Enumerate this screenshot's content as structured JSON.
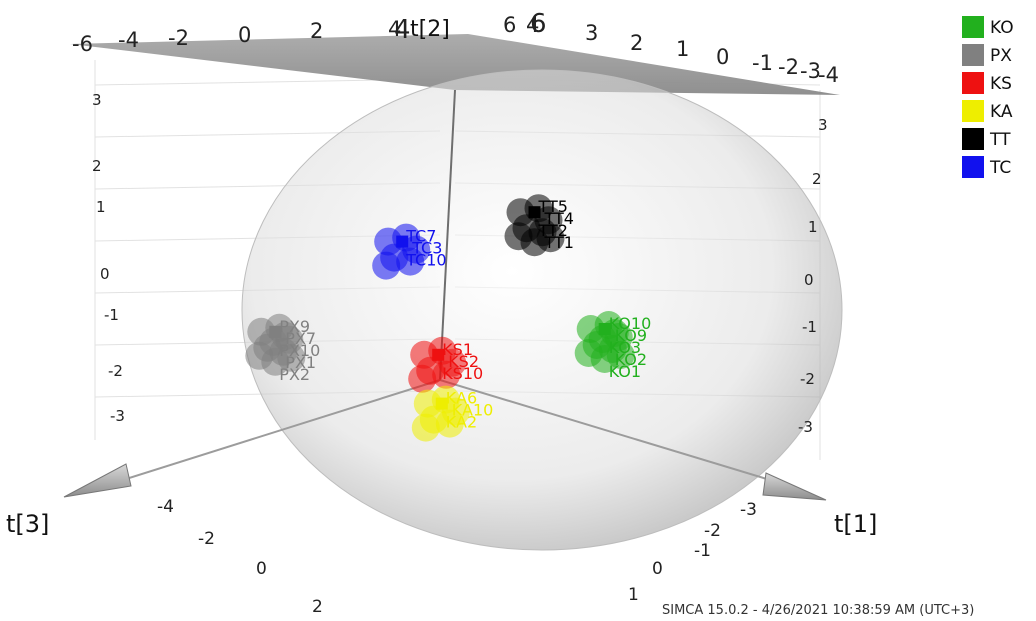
{
  "footer": "SIMCA 15.0.2 - 4/26/2021 10:38:59 AM (UTC+3)",
  "legend": [
    {
      "name": "KO",
      "color": "#22b01e"
    },
    {
      "name": "PX",
      "color": "#808080"
    },
    {
      "name": "KS",
      "color": "#ee1111"
    },
    {
      "name": "KA",
      "color": "#eeee00"
    },
    {
      "name": "TT",
      "color": "#000000"
    },
    {
      "name": "TC",
      "color": "#1111ee"
    }
  ],
  "chart_data": {
    "type": "scatter",
    "projection": "3d",
    "axes": {
      "x": {
        "label": "t[1]",
        "ticks": [
          "4",
          "3",
          "2",
          "1",
          "0",
          "-1",
          "-2",
          "-3",
          "-4"
        ]
      },
      "y": {
        "label": "t[2]",
        "ticks": [
          "3",
          "2",
          "1",
          "0",
          "-1",
          "-2",
          "-3"
        ]
      },
      "z": {
        "label": "t[3]",
        "ticks": [
          "-4",
          "-2",
          "0",
          "2",
          "4",
          "6"
        ]
      },
      "top_plane_ticks_near": [
        "-6",
        "-4",
        "-2",
        "0",
        "2",
        "4"
      ],
      "top_plane_ticks_far": [
        "6",
        "4",
        "3",
        "2",
        "1",
        "0",
        "-1",
        "-2",
        "-3",
        "-4"
      ],
      "right_wall_ticks_top": [
        "3",
        "2",
        "1",
        "0",
        "-1",
        "-2",
        "-3"
      ],
      "right_floor_ticks": [
        "-3",
        "-2",
        "-1",
        "0",
        "1"
      ],
      "left_floor_ticks": [
        "-4",
        "-2",
        "0",
        "2"
      ],
      "left_wall_ticks": [
        "3",
        "2",
        "1",
        "0",
        "-1",
        "-2",
        "-3"
      ],
      "top_plane_mid_label": "t[2]"
    },
    "confidence_ellipse": true,
    "series": [
      {
        "name": "KO",
        "color": "#22b01e",
        "labels": [
          "KO10",
          "KO9",
          "KO3",
          "KO2",
          "KO1"
        ],
        "centroid": [
          2.6,
          0.0,
          0.5
        ]
      },
      {
        "name": "PX",
        "color": "#808080",
        "labels": [
          "PX9",
          "PX7",
          "PX10",
          "PX1",
          "PX2"
        ],
        "centroid": [
          -2.6,
          -0.4,
          -0.5
        ]
      },
      {
        "name": "KS",
        "color": "#ee1111",
        "labels": [
          "KS1",
          "KS2",
          "KS10"
        ],
        "centroid": [
          0.1,
          -0.6,
          0.2
        ]
      },
      {
        "name": "KA",
        "color": "#eeee00",
        "labels": [
          "KA6",
          "KA10",
          "KA2"
        ],
        "centroid": [
          0.4,
          -1.4,
          0.6
        ]
      },
      {
        "name": "TT",
        "color": "#000000",
        "labels": [
          "TT5",
          "TT4",
          "TT2",
          "TT1"
        ],
        "centroid": [
          1.0,
          1.9,
          -0.5
        ]
      },
      {
        "name": "TC",
        "color": "#1111ee",
        "labels": [
          "TC7",
          "TC3",
          "TC10"
        ],
        "centroid": [
          -0.9,
          1.3,
          -0.6
        ]
      }
    ]
  }
}
